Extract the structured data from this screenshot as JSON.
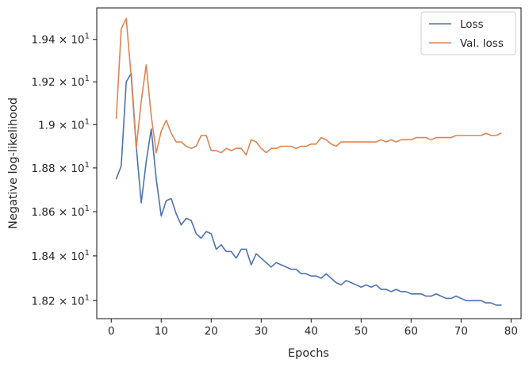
{
  "chart_data": {
    "type": "line",
    "xlabel": "Epochs",
    "ylabel": "Negative log-likelihood",
    "xlim": [
      -2.9,
      82.0
    ],
    "ylim": [
      18.12,
      19.55
    ],
    "y_scale": "log",
    "grid": false,
    "legend_position": "top-right",
    "x_ticks": [
      0,
      10,
      20,
      30,
      40,
      50,
      60,
      70,
      80
    ],
    "y_ticks": [
      {
        "value": 18.2,
        "mantissa": "1.82",
        "base": "10",
        "exp": "1"
      },
      {
        "value": 18.4,
        "mantissa": "1.84",
        "base": "10",
        "exp": "1"
      },
      {
        "value": 18.6,
        "mantissa": "1.86",
        "base": "10",
        "exp": "1"
      },
      {
        "value": 18.8,
        "mantissa": "1.88",
        "base": "10",
        "exp": "1"
      },
      {
        "value": 19.0,
        "mantissa": "1.9",
        "base": "10",
        "exp": "1"
      },
      {
        "value": 19.2,
        "mantissa": "1.92",
        "base": "10",
        "exp": "1"
      },
      {
        "value": 19.4,
        "mantissa": "1.94",
        "base": "10",
        "exp": "1"
      }
    ],
    "series": [
      {
        "name": "Loss",
        "color": "#4c72b0",
        "x": [
          1,
          2,
          3,
          4,
          5,
          6,
          7,
          8,
          9,
          10,
          11,
          12,
          13,
          14,
          15,
          16,
          17,
          18,
          19,
          20,
          21,
          22,
          23,
          24,
          25,
          26,
          27,
          28,
          29,
          30,
          31,
          32,
          33,
          34,
          35,
          36,
          37,
          38,
          39,
          40,
          41,
          42,
          43,
          44,
          45,
          46,
          47,
          48,
          49,
          50,
          51,
          52,
          53,
          54,
          55,
          56,
          57,
          58,
          59,
          60,
          61,
          62,
          63,
          64,
          65,
          66,
          67,
          68,
          69,
          70,
          71,
          72,
          73,
          74,
          75,
          76,
          77,
          78
        ],
        "values": [
          18.75,
          18.81,
          19.2,
          19.24,
          18.9,
          18.64,
          18.83,
          18.98,
          18.75,
          18.58,
          18.65,
          18.66,
          18.59,
          18.54,
          18.57,
          18.56,
          18.5,
          18.48,
          18.51,
          18.5,
          18.43,
          18.45,
          18.42,
          18.42,
          18.39,
          18.43,
          18.43,
          18.36,
          18.41,
          18.39,
          18.37,
          18.35,
          18.37,
          18.36,
          18.35,
          18.34,
          18.34,
          18.32,
          18.32,
          18.31,
          18.31,
          18.3,
          18.32,
          18.3,
          18.28,
          18.27,
          18.29,
          18.28,
          18.27,
          18.26,
          18.27,
          18.26,
          18.27,
          18.25,
          18.25,
          18.24,
          18.25,
          18.24,
          18.24,
          18.23,
          18.23,
          18.23,
          18.22,
          18.22,
          18.23,
          18.22,
          18.21,
          18.21,
          18.22,
          18.21,
          18.2,
          18.2,
          18.2,
          18.2,
          18.19,
          18.19,
          18.18,
          18.18
        ]
      },
      {
        "name": "Val. loss",
        "color": "#dd8452",
        "x": [
          1,
          2,
          3,
          4,
          5,
          6,
          7,
          8,
          9,
          10,
          11,
          12,
          13,
          14,
          15,
          16,
          17,
          18,
          19,
          20,
          21,
          22,
          23,
          24,
          25,
          26,
          27,
          28,
          29,
          30,
          31,
          32,
          33,
          34,
          35,
          36,
          37,
          38,
          39,
          40,
          41,
          42,
          43,
          44,
          45,
          46,
          47,
          48,
          49,
          50,
          51,
          52,
          53,
          54,
          55,
          56,
          57,
          58,
          59,
          60,
          61,
          62,
          63,
          64,
          65,
          66,
          67,
          68,
          69,
          70,
          71,
          72,
          73,
          74,
          75,
          76,
          77,
          78
        ],
        "values": [
          19.03,
          19.45,
          19.5,
          19.22,
          18.89,
          19.11,
          19.28,
          19.04,
          18.87,
          18.97,
          19.02,
          18.96,
          18.92,
          18.92,
          18.9,
          18.89,
          18.9,
          18.95,
          18.95,
          18.88,
          18.88,
          18.87,
          18.89,
          18.88,
          18.89,
          18.89,
          18.86,
          18.93,
          18.92,
          18.89,
          18.87,
          18.89,
          18.89,
          18.9,
          18.9,
          18.9,
          18.89,
          18.9,
          18.9,
          18.91,
          18.91,
          18.94,
          18.93,
          18.91,
          18.9,
          18.92,
          18.92,
          18.92,
          18.92,
          18.92,
          18.92,
          18.92,
          18.92,
          18.93,
          18.92,
          18.93,
          18.92,
          18.93,
          18.93,
          18.93,
          18.94,
          18.94,
          18.94,
          18.93,
          18.94,
          18.94,
          18.94,
          18.94,
          18.95,
          18.95,
          18.95,
          18.95,
          18.95,
          18.95,
          18.96,
          18.95,
          18.95,
          18.96
        ]
      }
    ]
  }
}
